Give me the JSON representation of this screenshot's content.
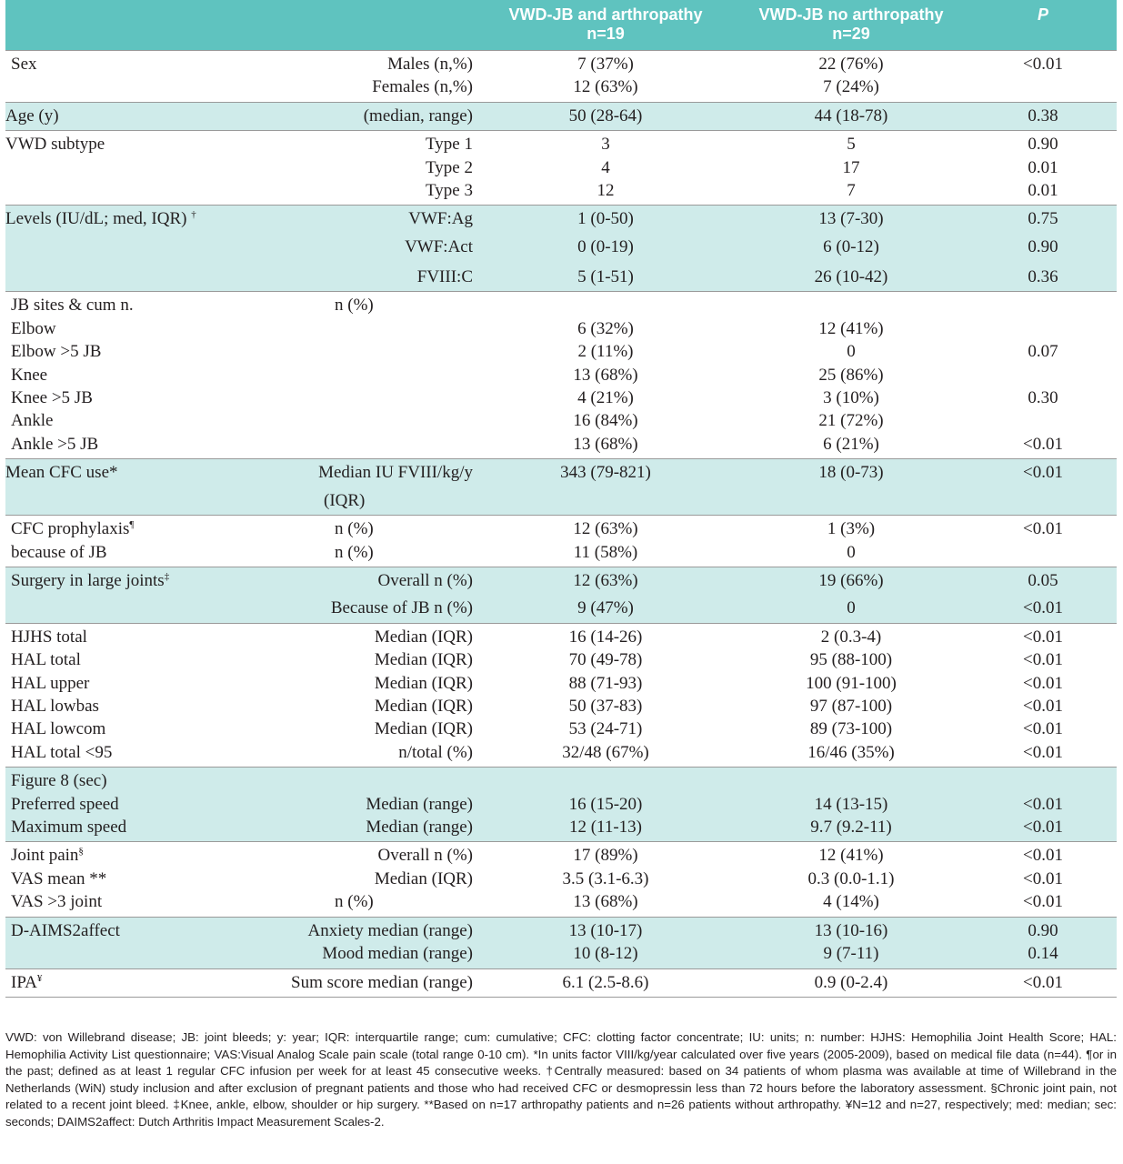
{
  "header": {
    "col_arthropathy_line1": "VWD-JB and arthropathy",
    "col_arthropathy_line2": "n=19",
    "col_no_arthropathy_line1": "VWD-JB no arthropathy",
    "col_no_arthropathy_line2": "n=29",
    "col_p": "P"
  },
  "rows": {
    "sex": {
      "label": "Sex",
      "males": "Males (n,%)",
      "females": "Females (n,%)",
      "males_a": "7 (37%)",
      "males_b": "22 (76%)",
      "p": "<0.01",
      "females_a": "12 (63%)",
      "females_b": "7 (24%)"
    },
    "age": {
      "label": "Age (y)",
      "sub": "(median, range)",
      "a": "50 (28-64)",
      "b": "44 (18-78)",
      "p": "0.38"
    },
    "subtype": {
      "label": "VWD subtype",
      "t1": "Type 1",
      "t1_a": "3",
      "t1_b": "5",
      "t1_p": "0.90",
      "t2": "Type 2",
      "t2_a": "4",
      "t2_b": "17",
      "t2_p": "0.01",
      "t3": "Type 3",
      "t3_a": "12",
      "t3_b": "7",
      "t3_p": "0.01"
    },
    "levels": {
      "label": "Levels (IU/dL; med, IQR)",
      "sup": "†",
      "ag": "VWF:Ag",
      "ag_a": "1 (0-50)",
      "ag_b": "13 (7-30)",
      "ag_p": "0.75",
      "act": "VWF:Act",
      "act_a": "0 (0-19)",
      "act_b": "6 (0-12)",
      "act_p": "0.90",
      "fviii": "FVIII:C",
      "fviii_a": "5 (1-51)",
      "fviii_b": "26 (10-42)",
      "fviii_p": "0.36"
    },
    "jb": {
      "label": "JB sites & cum n.",
      "sub": "n (%)",
      "elbow": "Elbow",
      "elbow_a": "6 (32%)",
      "elbow_b": "12 (41%)",
      "elbow5": "Elbow >5 JB",
      "elbow5_a": "2 (11%)",
      "elbow5_b": "0",
      "elbow5_p": "0.07",
      "knee": "Knee",
      "knee_a": "13 (68%)",
      "knee_b": "25 (86%)",
      "knee5": "Knee >5 JB",
      "knee5_a": "4 (21%)",
      "knee5_b": "3 (10%)",
      "knee5_p": "0.30",
      "ankle": "Ankle",
      "ankle_a": "16 (84%)",
      "ankle_b": "21 (72%)",
      "ankle5": "Ankle >5 JB",
      "ankle5_a": "13 (68%)",
      "ankle5_b": "6 (21%)",
      "ankle5_p": "<0.01"
    },
    "cfc_use": {
      "label": "Mean CFC use*",
      "sub1": "Median IU FVIII/kg/y",
      "sub2": "(IQR)",
      "a": "343 (79-821)",
      "b": "18 (0-73)",
      "p": "<0.01"
    },
    "cfc_proph": {
      "label": "CFC prophylaxis",
      "sup": "¶",
      "label2": "because of JB",
      "sub": "n (%)",
      "a": "12 (63%)",
      "b": "1 (3%)",
      "p": "<0.01",
      "sub2": "n (%)",
      "a2": "11 (58%)",
      "b2": "0"
    },
    "surgery": {
      "label": "Surgery in large joints",
      "sup": "‡",
      "sub": "Overall n (%)",
      "a": "12 (63%)",
      "b": "19 (66%)",
      "p": "0.05",
      "sub2": "Because of JB n (%)",
      "a2": "9 (47%)",
      "b2": "0",
      "p2": "<0.01"
    },
    "hal": [
      {
        "label": "HJHS total",
        "sub": "Median (IQR)",
        "a": "16 (14-26)",
        "b": "2 (0.3-4)",
        "p": "<0.01"
      },
      {
        "label": "HAL total",
        "sub": "Median (IQR)",
        "a": "70 (49-78)",
        "b": "95 (88-100)",
        "p": "<0.01"
      },
      {
        "label": "HAL upper",
        "sub": "Median (IQR)",
        "a": "88 (71-93)",
        "b": "100 (91-100)",
        "p": "<0.01"
      },
      {
        "label": "HAL lowbas",
        "sub": "Median (IQR)",
        "a": "50 (37-83)",
        "b": "97 (87-100)",
        "p": "<0.01"
      },
      {
        "label": "HAL lowcom",
        "sub": "Median (IQR)",
        "a": "53 (24-71)",
        "b": "89 (73-100)",
        "p": "<0.01"
      },
      {
        "label": "HAL total <95",
        "sub": "n/total (%)",
        "a": "32/48 (67%)",
        "b": "16/46 (35%)",
        "p": "<0.01"
      }
    ],
    "fig8": {
      "label": "Figure 8 (sec)",
      "pref": "Preferred speed",
      "pref_sub": "Median (range)",
      "pref_a": "16 (15-20)",
      "pref_b": "14 (13-15)",
      "pref_p": "<0.01",
      "max": "Maximum speed",
      "max_sub": "Median (range)",
      "max_a": "12 (11-13)",
      "max_b": "9.7 (9.2-11)",
      "max_p": "<0.01"
    },
    "pain": {
      "label": "Joint pain",
      "sup": "§",
      "sub": "Overall n (%)",
      "a": "17 (89%)",
      "b": "12 (41%)",
      "p": "<0.01",
      "vas": "VAS mean **",
      "vas_sub": "Median (IQR)",
      "vas_a": "3.5 (3.1-6.3)",
      "vas_b": "0.3 (0.0-1.1)",
      "vas_p": "<0.01",
      "vas3": "VAS >3 joint",
      "vas3_sub": "n (%)",
      "vas3_a": "13 (68%)",
      "vas3_b": "4 (14%)",
      "vas3_p": "<0.01"
    },
    "aims": {
      "label": "D-AIMS2affect",
      "anx": "Anxiety median (range)",
      "anx_a": "13 (10-17)",
      "anx_b": "13 (10-16)",
      "anx_p": "0.90",
      "mood": "Mood median (range)",
      "mood_a": "10 (8-12)",
      "mood_b": "9 (7-11)",
      "mood_p": "0.14"
    },
    "ipa": {
      "label": "IPA",
      "sup": "¥",
      "sub": "Sum score median (range)",
      "a": "6.1 (2.5-8.6)",
      "b": "0.9 (0-2.4)",
      "p": "<0.01"
    }
  },
  "footnote": "VWD: von Willebrand disease; JB: joint bleeds; y: year; IQR: interquartile range; cum: cumulative;  CFC: clotting factor concentrate; IU: units; n: number: HJHS: Hemophilia Joint Health Score; HAL: Hemophilia Activity List questionnaire; VAS:Visual Analog Scale pain scale (total range 0-10 cm). *In units factor VIII/kg/year calculated over five years (2005-2009), based on medical file data (n=44). ¶or in the past; defined as at least 1 regular CFC infusion per week for at least 45 consecutive weeks. †Centrally measured: based on 34 patients of whom plasma was available at time of Willebrand in the Netherlands (WiN) study inclusion and after exclusion of pregnant patients and those who had received CFC or desmopressin less than 72 hours before the laboratory assessment. §Chronic joint pain, not related to a recent joint bleed. ‡Knee, ankle, elbow, shoulder or hip surgery. **Based on n=17 arthropathy patients and n=26 patients without arthropathy. ¥N=12 and n=27, respectively; med: median; sec: seconds; DAIMS2affect: Dutch Arthritis Impact Measurement Scales-2.",
  "colors": {
    "header_bg": "#5fc3bf",
    "shade_bg": "#cfebea"
  }
}
